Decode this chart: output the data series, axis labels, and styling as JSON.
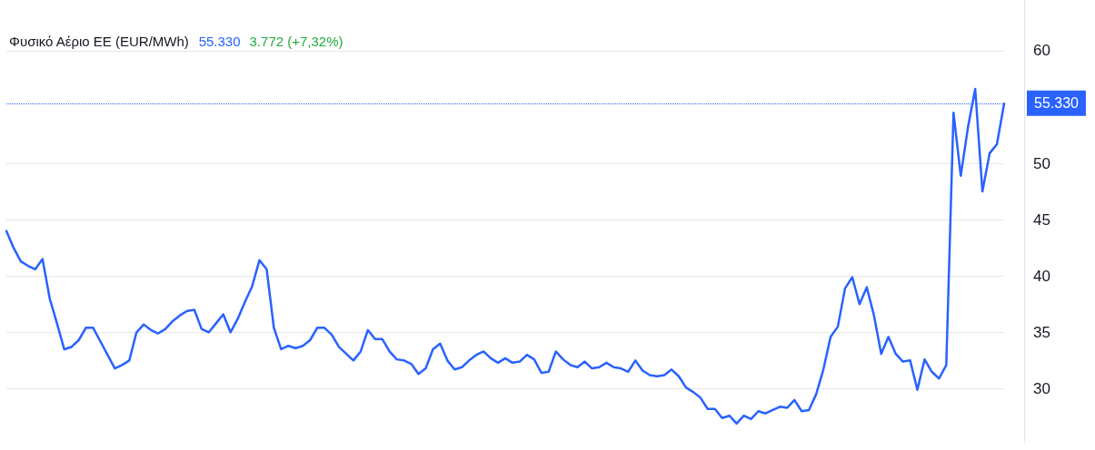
{
  "chart_data": {
    "type": "line",
    "title": "Φυσικό Αέριο ΕΕ (EUR/MWh)",
    "annotations": [
      "55.330",
      "3.772 (+7,32%)"
    ],
    "categories": [
      null,
      null,
      null,
      null,
      null,
      null,
      null,
      null,
      null,
      null,
      null,
      null,
      null,
      null,
      null,
      null,
      null,
      null,
      null,
      null,
      null,
      null,
      null,
      null,
      null,
      null,
      null,
      null,
      null,
      null,
      null,
      null,
      null,
      null,
      null,
      null,
      null,
      null,
      null,
      null,
      null,
      null,
      null,
      null,
      null,
      null,
      null,
      null,
      null,
      null,
      null,
      null,
      null,
      null,
      null,
      null,
      null,
      null,
      null,
      null,
      null,
      null,
      null,
      null,
      null,
      null,
      null,
      null,
      null,
      null,
      null,
      null,
      null,
      null,
      null,
      null,
      null,
      null,
      null,
      null,
      null,
      null,
      null,
      null,
      null,
      null,
      null,
      null,
      null,
      null,
      null,
      null,
      null,
      null,
      null,
      null,
      null,
      null,
      null,
      null,
      null,
      null,
      null,
      null,
      null,
      null,
      null,
      null,
      null,
      null,
      null,
      null,
      null,
      null,
      null,
      null,
      null,
      null,
      null,
      null,
      null,
      null,
      null,
      null,
      null,
      null,
      null,
      null,
      null,
      null,
      null,
      null,
      null,
      null,
      null,
      null,
      null,
      null,
      null
    ],
    "series": [
      {
        "color": "#2962ff",
        "values": [
          44.0,
          42.5,
          41.3,
          40.9,
          40.6,
          41.5,
          38.0,
          35.8,
          33.5,
          33.7,
          34.3,
          35.4,
          35.4,
          34.2,
          33.0,
          31.8,
          32.1,
          32.5,
          35.0,
          35.7,
          35.2,
          34.9,
          35.3,
          36.0,
          36.5,
          36.9,
          37.0,
          35.3,
          35.0,
          35.8,
          36.6,
          35.0,
          36.2,
          37.7,
          39.1,
          41.4,
          40.6,
          35.4,
          33.5,
          33.8,
          33.6,
          33.8,
          34.3,
          35.4,
          35.4,
          34.8,
          33.7,
          33.1,
          32.5,
          33.3,
          35.2,
          34.4,
          34.4,
          33.3,
          32.6,
          32.5,
          32.2,
          31.3,
          31.8,
          33.5,
          34.0,
          32.5,
          31.7,
          31.9,
          32.5,
          33.0,
          33.3,
          32.7,
          32.3,
          32.7,
          32.3,
          32.4,
          33.0,
          32.6,
          31.4,
          31.5,
          33.3,
          32.6,
          32.1,
          31.9,
          32.4,
          31.8,
          31.9,
          32.3,
          31.9,
          31.8,
          31.5,
          32.5,
          31.6,
          31.2,
          31.1,
          31.2,
          31.7,
          31.1,
          30.1,
          29.7,
          29.2,
          28.2,
          28.2,
          27.4,
          27.6,
          26.9,
          27.6,
          27.3,
          28.0,
          27.8,
          28.1,
          28.4,
          28.3,
          29.0,
          28.0,
          28.1,
          29.5,
          31.7,
          34.6,
          35.5,
          38.9,
          39.9,
          37.5,
          39.0,
          36.5,
          33.1,
          34.6,
          33.1,
          32.4,
          32.5,
          29.9,
          32.6,
          31.5,
          30.9,
          32.1,
          54.5,
          48.9,
          53.2,
          56.6,
          47.5,
          50.9,
          51.7,
          55.3
        ]
      }
    ],
    "ylim": [
      25.2,
      64.5
    ],
    "yticks": [
      30,
      35,
      40,
      45,
      50,
      60
    ],
    "grid": "y",
    "marker": "none",
    "line_style": "solid",
    "ref_lines": [
      {
        "axis": "y",
        "value": 55.33,
        "label": "55.330",
        "color": "#2962ff",
        "line_style": "dotted"
      }
    ]
  }
}
